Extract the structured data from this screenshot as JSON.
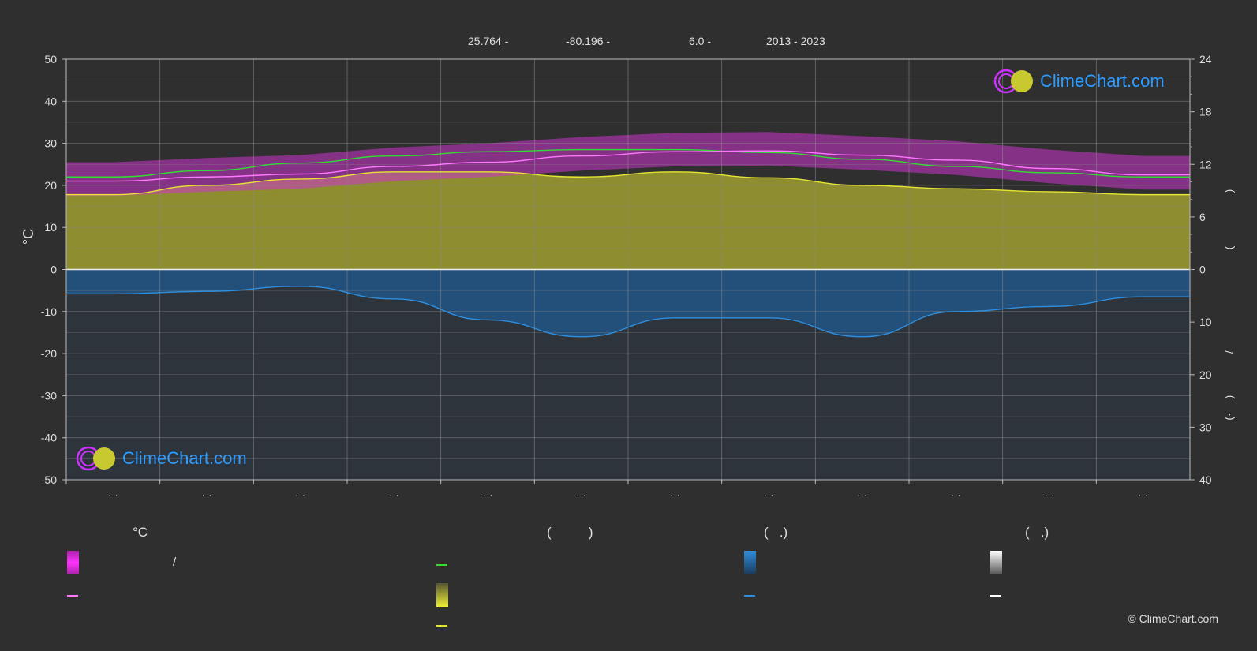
{
  "header": {
    "lat": "25.764 -",
    "lon": "-80.196 -",
    "elev": "6.0 -",
    "years": "2013 - 2023"
  },
  "legend": {
    "col1_head": "°C",
    "col2_head": "(          )",
    "col3_head": "(   .)",
    "col4_head": "(   .)",
    "slash": "/"
  },
  "logo_text": "ClimeChart.com",
  "copyright": "© ClimeChart.com",
  "right_axis_labels": [
    ")",
    "(",
    "/",
    ")",
    "(·"
  ],
  "chart_data": {
    "type": "line",
    "x": [
      1,
      2,
      3,
      4,
      5,
      6,
      7,
      8,
      9,
      10,
      11,
      12
    ],
    "month_labels": [
      "· ·",
      "· ·",
      "· ·",
      "· ·",
      "· ·",
      "· ·",
      "· ·",
      "· ·",
      "· ·",
      "· ·",
      "· ·",
      "· ·"
    ],
    "left_axis": {
      "label": "°C",
      "ylim": [
        -50,
        50
      ],
      "ticks": [
        50,
        40,
        30,
        20,
        10,
        0,
        -10,
        -20,
        -30,
        -40,
        -50
      ]
    },
    "right_axis_top": {
      "ylim": [
        0,
        24
      ],
      "ticks": [
        24,
        18,
        12,
        6,
        0
      ]
    },
    "right_axis_bottom": {
      "ylim": [
        0,
        40
      ],
      "ticks": [
        0,
        10,
        20,
        30,
        40
      ]
    },
    "series": [
      {
        "color": "#33dd33",
        "values": [
          22.0,
          23.5,
          25.3,
          27.0,
          28.0,
          28.5,
          28.5,
          27.8,
          26.2,
          24.5,
          23.0,
          22.0
        ]
      },
      {
        "color": "#ff77ff",
        "values": [
          21.0,
          22.0,
          22.7,
          24.5,
          25.5,
          27.0,
          28.0,
          28.2,
          27.2,
          26.0,
          24.0,
          22.5
        ]
      },
      {
        "color": "#e5e533",
        "values": [
          17.8,
          20.0,
          21.5,
          23.2,
          23.2,
          22.0,
          23.2,
          21.8,
          20.0,
          19.2,
          18.5,
          17.8
        ]
      },
      {
        "color": "#2e8fe0",
        "values": [
          -5.8,
          -5.2,
          -4.0,
          -7.0,
          -12.0,
          -16.0,
          -11.5,
          -11.5,
          -16.0,
          -10.0,
          -8.8,
          -6.5
        ]
      }
    ],
    "fill_colors": {
      "temp_band": "#cc33cc",
      "sunshine": "#9f9f30",
      "precip": "#1f5f99"
    },
    "grid": true
  }
}
